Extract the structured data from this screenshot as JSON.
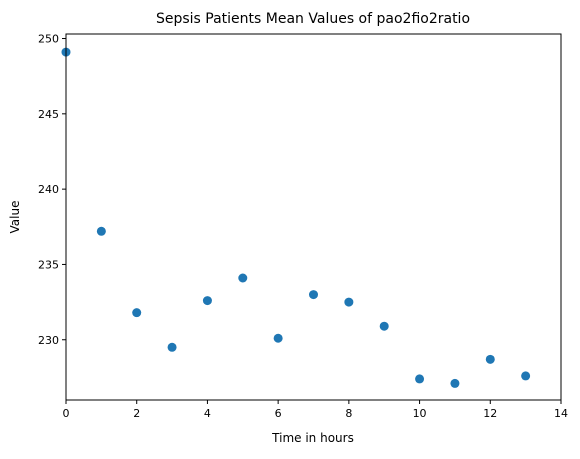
{
  "chart_data": {
    "type": "scatter",
    "title": "Sepsis Patients Mean Values of pao2fio2ratio",
    "xlabel": "Time in hours",
    "ylabel": "Value",
    "xlim": [
      0,
      14
    ],
    "ylim": [
      226,
      250.3
    ],
    "xticks": [
      0,
      2,
      4,
      6,
      8,
      10,
      12,
      14
    ],
    "yticks": [
      230,
      235,
      240,
      245,
      250
    ],
    "grid": false,
    "legend": "none",
    "marker_color": "#1f77b4",
    "series": [
      {
        "x": [
          0,
          1,
          2,
          3,
          4,
          5,
          6,
          7,
          8,
          9,
          10,
          11,
          12,
          13
        ],
        "y": [
          249.1,
          237.2,
          231.8,
          229.5,
          232.6,
          234.1,
          230.1,
          233.0,
          232.5,
          230.9,
          227.4,
          227.1,
          228.7,
          227.6
        ]
      }
    ]
  }
}
